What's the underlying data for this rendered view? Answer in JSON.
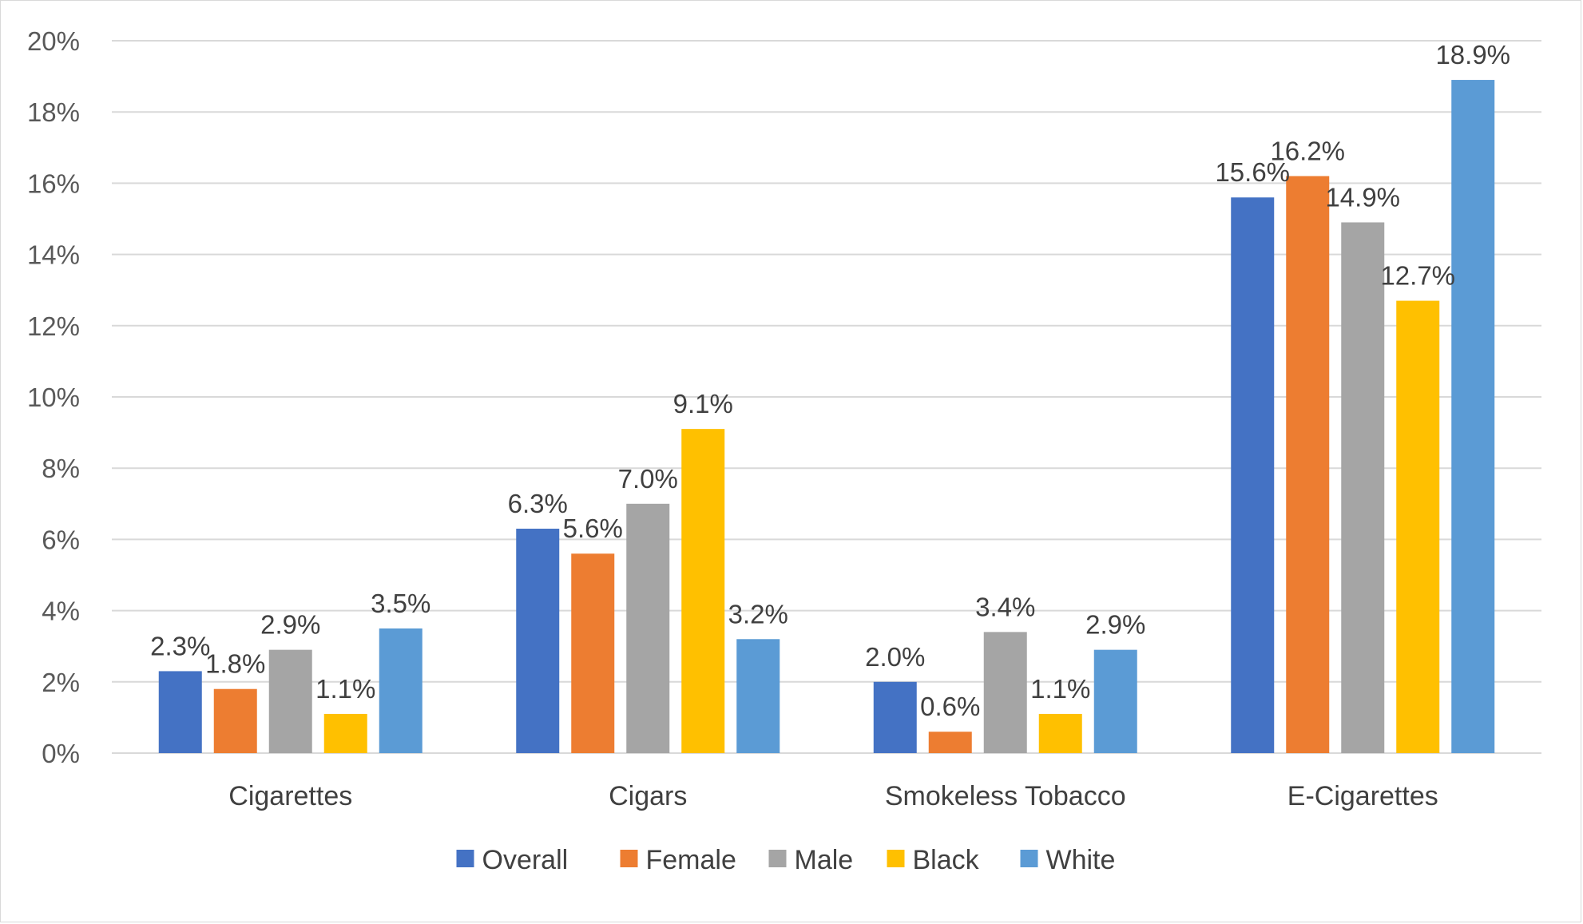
{
  "chart_data": {
    "type": "bar",
    "title": "",
    "xlabel": "",
    "ylabel": "",
    "categories": [
      "Cigarettes",
      "Cigars",
      "Smokeless Tobacco",
      "E-Cigarettes"
    ],
    "ylim": [
      0,
      20
    ],
    "yticks": [
      0,
      2,
      4,
      6,
      8,
      10,
      12,
      14,
      16,
      18,
      20
    ],
    "ytick_labels": [
      "0%",
      "2%",
      "4%",
      "6%",
      "8%",
      "10%",
      "12%",
      "14%",
      "16%",
      "18%",
      "20%"
    ],
    "grid": true,
    "legend_position": "bottom",
    "series": [
      {
        "name": "Overall",
        "color": "#4472C4",
        "values": [
          2.3,
          6.3,
          2.0,
          15.6
        ],
        "labels": [
          "2.3%",
          "6.3%",
          "2.0%",
          "15.6%"
        ]
      },
      {
        "name": "Female",
        "color": "#ED7D31",
        "values": [
          1.8,
          5.6,
          0.6,
          16.2
        ],
        "labels": [
          "1.8%",
          "5.6%",
          "0.6%",
          "16.2%"
        ]
      },
      {
        "name": "Male",
        "color": "#A5A5A5",
        "values": [
          2.9,
          7.0,
          3.4,
          14.9
        ],
        "labels": [
          "2.9%",
          "7.0%",
          "3.4%",
          "14.9%"
        ]
      },
      {
        "name": "Black",
        "color": "#FFC000",
        "values": [
          1.1,
          9.1,
          1.1,
          12.7
        ],
        "labels": [
          "1.1%",
          "9.1%",
          "1.1%",
          "12.7%"
        ]
      },
      {
        "name": "White",
        "color": "#5B9BD5",
        "values": [
          3.5,
          3.2,
          2.9,
          18.9
        ],
        "labels": [
          "3.5%",
          "3.2%",
          "2.9%",
          "18.9%"
        ]
      }
    ]
  }
}
